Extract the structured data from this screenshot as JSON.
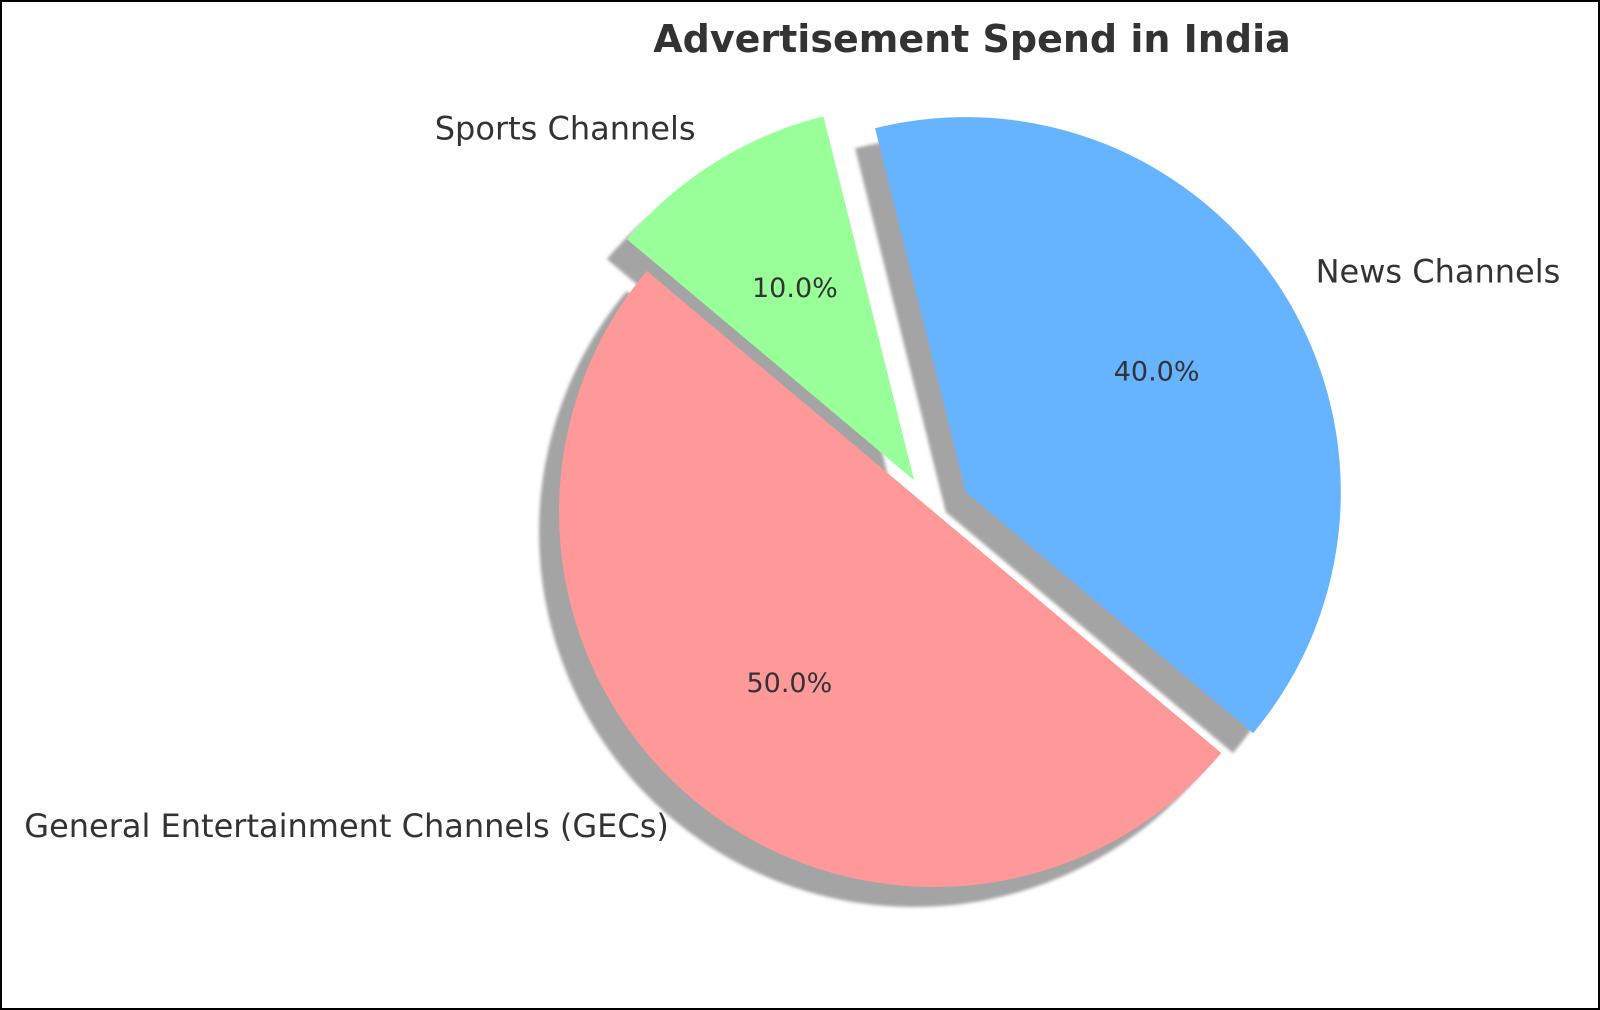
{
  "chart_data": {
    "type": "pie",
    "title": "Advertisement Spend in India",
    "slices": [
      {
        "label": "General Entertainment Channels (GECs)",
        "value": 50,
        "pct_label": "50.0%",
        "color": "#ff9999",
        "exploded": false
      },
      {
        "label": "News Channels",
        "value": 40,
        "pct_label": "40.0%",
        "color": "#66b3ff",
        "exploded": true
      },
      {
        "label": "Sports Channels",
        "value": 10,
        "pct_label": "10.0%",
        "color": "#99ff99",
        "exploded": true
      }
    ],
    "start_angle_deg": 140,
    "shadow": true,
    "legend": "none"
  }
}
